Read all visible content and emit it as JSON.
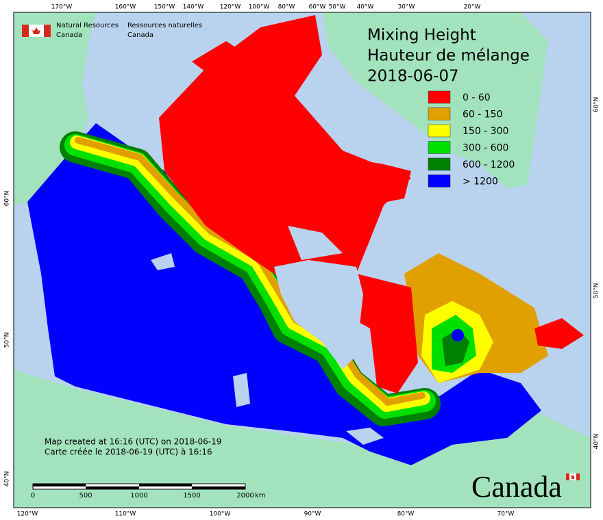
{
  "header": {
    "org_en": [
      "Natural Resources",
      "Canada"
    ],
    "org_fr": [
      "Ressources naturelles",
      "Canada"
    ]
  },
  "title": [
    "Mixing Height",
    "Hauteur de mélange",
    "2018-06-07"
  ],
  "legend": [
    {
      "label": "0 - 60",
      "color": "#ff0000"
    },
    {
      "label": "60 - 150",
      "color": "#e0a000"
    },
    {
      "label": "150 - 300",
      "color": "#ffff00"
    },
    {
      "label": "300 - 600",
      "color": "#00e000"
    },
    {
      "label": "600 - 1200",
      "color": "#008000"
    },
    {
      "label": "> 1200",
      "color": "#0000ff"
    }
  ],
  "footer": [
    "Map created at 16:16 (UTC) on 2018-06-19",
    "Carte créée le 2018-06-19 (UTC) à 16:16"
  ],
  "scale_bar": {
    "labels": [
      "0",
      "500",
      "1000",
      "1500",
      "2000"
    ],
    "unit": "km"
  },
  "wordmark": "Canada",
  "graticule": {
    "top": [
      "170°W",
      "160°W",
      "150°W",
      "140°W",
      "120°W",
      "100°W",
      "80°W",
      "60°W",
      "50°W",
      "40°W",
      "30°W",
      "20°W"
    ],
    "bottom": [
      "120°W",
      "110°W",
      "100°W",
      "90°W",
      "80°W",
      "70°W"
    ],
    "left": [
      "60°N",
      "50°N",
      "40°N"
    ],
    "right": [
      "60°N",
      "50°N",
      "40°N"
    ]
  }
}
